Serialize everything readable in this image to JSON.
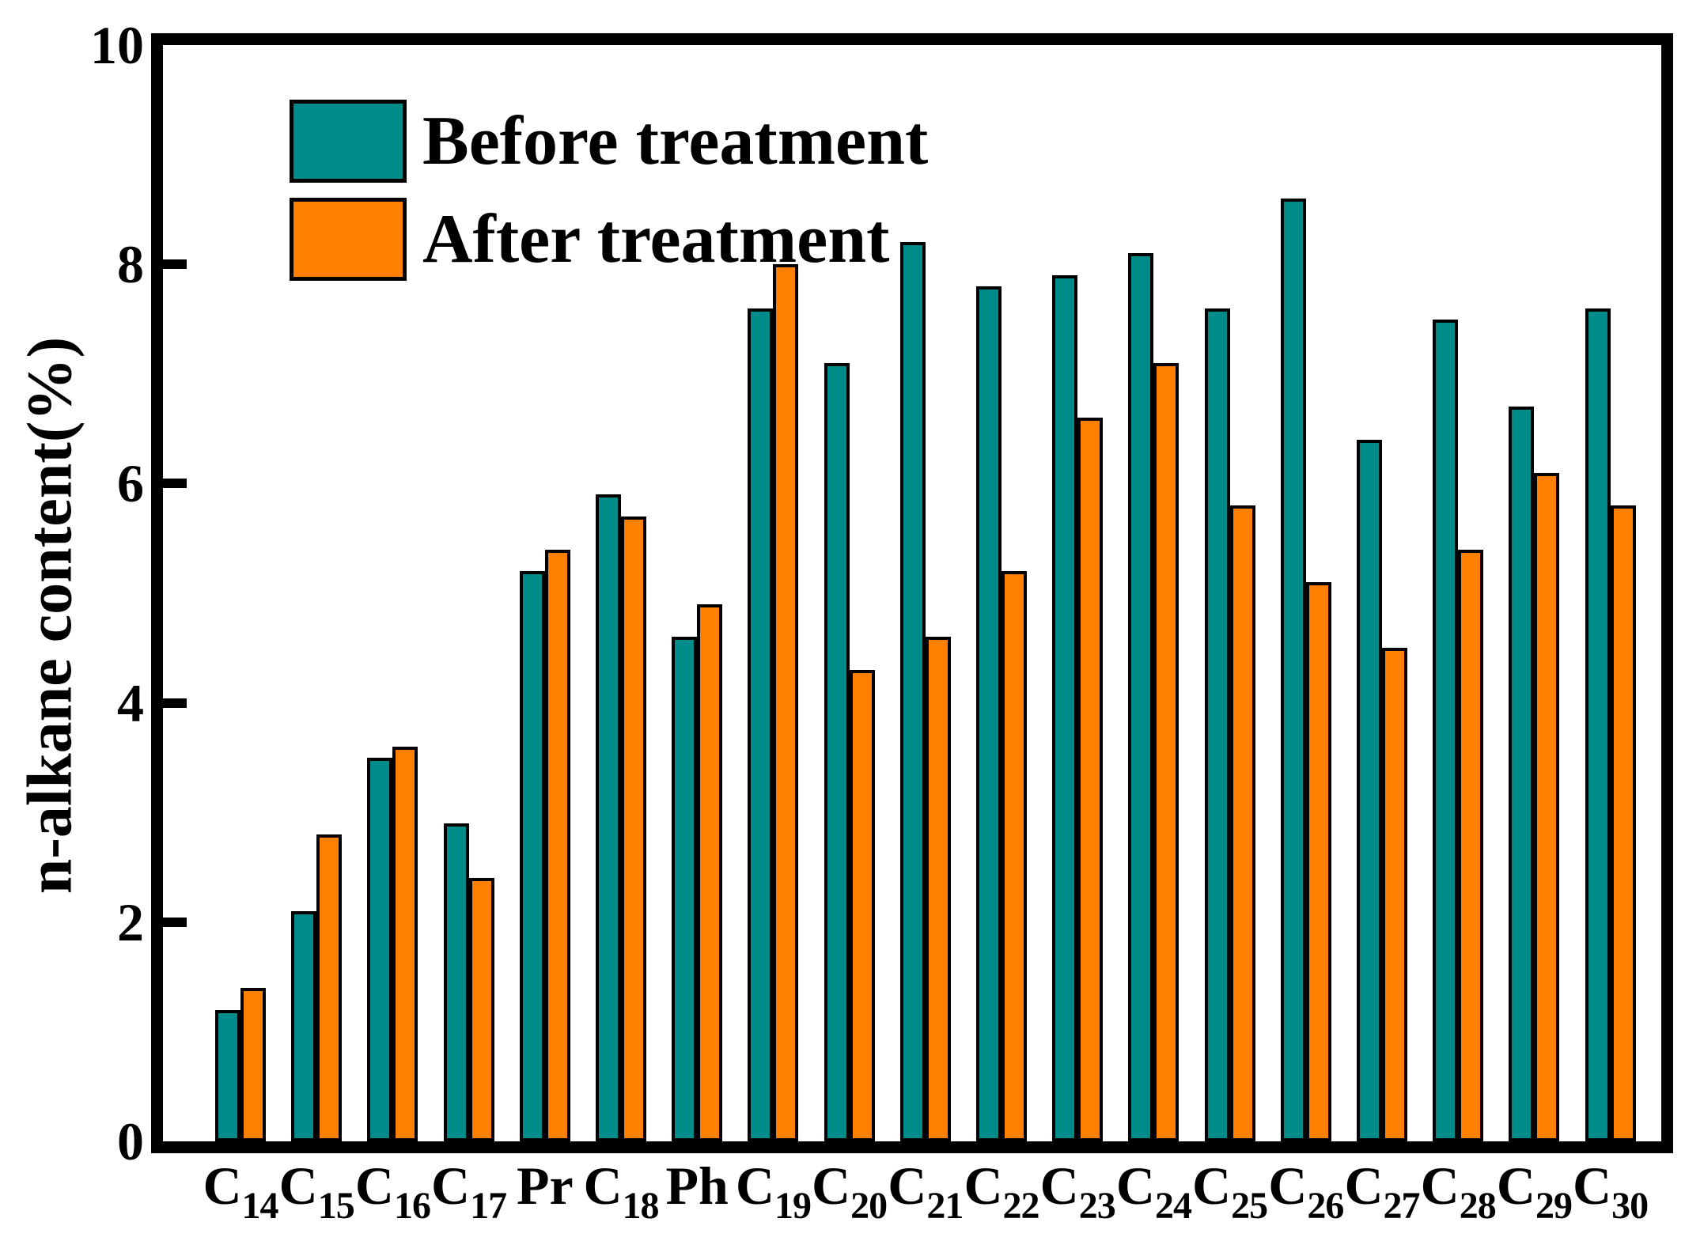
{
  "chart_data": {
    "type": "bar",
    "title": "",
    "xlabel": "",
    "ylabel": "n-alkane content(%)",
    "ylim": [
      0,
      10
    ],
    "yticks": [
      0,
      2,
      4,
      6,
      8,
      10
    ],
    "grid": false,
    "legend_position": "top-left-inside",
    "axis_color": "#000000",
    "background_color": "#ffffff",
    "categories": [
      {
        "label": "C",
        "sub": "14"
      },
      {
        "label": "C",
        "sub": "15"
      },
      {
        "label": "C",
        "sub": "16"
      },
      {
        "label": "C",
        "sub": "17"
      },
      {
        "label": "Pr",
        "sub": ""
      },
      {
        "label": "C",
        "sub": "18"
      },
      {
        "label": "Ph",
        "sub": ""
      },
      {
        "label": "C",
        "sub": "19"
      },
      {
        "label": "C",
        "sub": "20"
      },
      {
        "label": "C",
        "sub": "21"
      },
      {
        "label": "C",
        "sub": "22"
      },
      {
        "label": "C",
        "sub": "23"
      },
      {
        "label": "C",
        "sub": "24"
      },
      {
        "label": "C",
        "sub": "25"
      },
      {
        "label": "C",
        "sub": "26"
      },
      {
        "label": "C",
        "sub": "27"
      },
      {
        "label": "C",
        "sub": "28"
      },
      {
        "label": "C",
        "sub": "29"
      },
      {
        "label": "C",
        "sub": "30"
      }
    ],
    "series": [
      {
        "name": "Before treatment",
        "color": "#008B8B",
        "values": [
          1.2,
          2.1,
          3.5,
          2.9,
          5.2,
          5.9,
          4.6,
          7.6,
          7.1,
          8.2,
          7.8,
          7.9,
          8.1,
          7.6,
          8.6,
          6.4,
          7.5,
          6.7,
          7.6
        ]
      },
      {
        "name": "After treatment",
        "color": "#FF8000",
        "values": [
          1.4,
          2.8,
          3.6,
          2.4,
          5.4,
          5.7,
          4.9,
          8.0,
          4.3,
          4.6,
          5.2,
          6.6,
          7.1,
          5.8,
          5.1,
          4.5,
          5.4,
          6.1,
          5.8
        ]
      }
    ]
  }
}
